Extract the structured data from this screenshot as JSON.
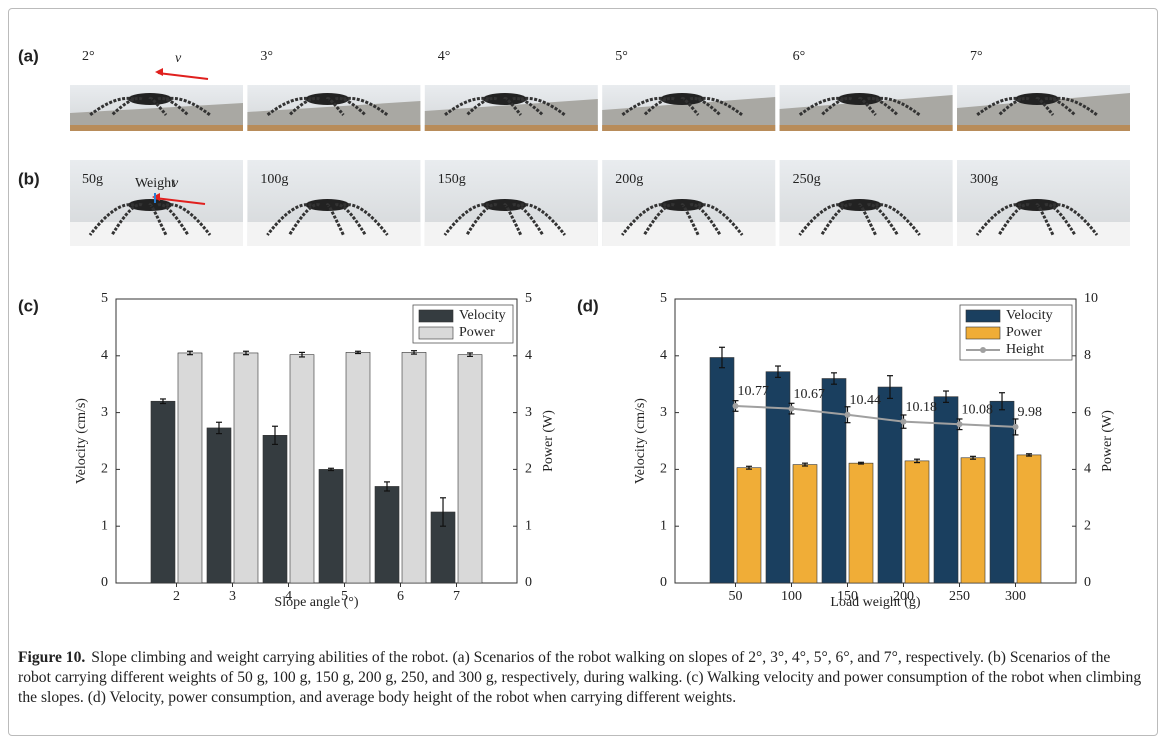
{
  "panels": {
    "a": {
      "label": "(a)",
      "frames": [
        "2°",
        "3°",
        "4°",
        "5°",
        "6°",
        "7°"
      ],
      "velocity_symbol": "v"
    },
    "b": {
      "label": "(b)",
      "frames": [
        "50g",
        "100g",
        "150g",
        "200g",
        "250g",
        "300g"
      ],
      "weight_label": "Weight",
      "velocity_symbol": "v"
    }
  },
  "chart_data": [
    {
      "type": "bar",
      "panel_label": "(c)",
      "xlabel": "Slope angle (°)",
      "ylabel": "Velocity (cm/s)",
      "y2label": "Power (W)",
      "categories": [
        "2",
        "3",
        "4",
        "5",
        "6",
        "7"
      ],
      "ylim": [
        0,
        5
      ],
      "yticks": [
        0,
        1,
        2,
        3,
        4,
        5
      ],
      "y2lim": [
        0,
        5
      ],
      "y2ticks": [
        0,
        1,
        2,
        3,
        4,
        5
      ],
      "legend": "upper right",
      "series": [
        {
          "name": "Velocity",
          "color": "#353c40",
          "values": [
            3.2,
            2.73,
            2.6,
            2.0,
            1.7,
            1.25
          ],
          "errors": [
            0.04,
            0.1,
            0.16,
            0.02,
            0.08,
            0.25
          ]
        },
        {
          "name": "Power",
          "color": "#d9d9d9",
          "axis": "y2",
          "values": [
            4.05,
            4.05,
            4.02,
            4.06,
            4.06,
            4.02
          ],
          "errors": [
            0.03,
            0.03,
            0.04,
            0.02,
            0.03,
            0.03
          ]
        }
      ]
    },
    {
      "type": "bar",
      "panel_label": "(d)",
      "xlabel": "Load weight (g)",
      "ylabel": "Velocity (cm/s)",
      "y2label": "Power (W)",
      "categories": [
        "50",
        "100",
        "150",
        "200",
        "250",
        "300"
      ],
      "ylim": [
        0,
        5
      ],
      "yticks": [
        0,
        1,
        2,
        3,
        4,
        5
      ],
      "y2lim": [
        0,
        10
      ],
      "y2ticks": [
        0,
        2,
        4,
        6,
        8,
        10
      ],
      "y3lim": [
        4.1,
        14.8
      ],
      "legend": "upper right",
      "series": [
        {
          "name": "Velocity",
          "color": "#1a3f5f",
          "values": [
            3.97,
            3.72,
            3.6,
            3.45,
            3.28,
            3.2
          ],
          "errors": [
            0.18,
            0.1,
            0.1,
            0.2,
            0.1,
            0.15
          ]
        },
        {
          "name": "Power",
          "color": "#f0ad37",
          "axis": "y2",
          "values": [
            4.06,
            4.17,
            4.22,
            4.3,
            4.41,
            4.51
          ],
          "errors": [
            0.05,
            0.05,
            0.03,
            0.06,
            0.05,
            0.04
          ]
        },
        {
          "name": "Height",
          "color": "#a0a0a0",
          "type": "line",
          "axis": "y3",
          "values": [
            10.77,
            10.67,
            10.44,
            10.18,
            10.08,
            9.98
          ],
          "errors": [
            0.2,
            0.2,
            0.3,
            0.25,
            0.2,
            0.3
          ]
        }
      ]
    }
  ],
  "caption": {
    "label": "Figure 10.",
    "text": "Slope climbing and weight carrying abilities of the robot. (a) Scenarios of the robot walking on slopes of 2°, 3°, 4°, 5°, 6°, and 7°, respectively. (b) Scenarios of the robot carrying different weights of 50 g, 100 g, 150 g, 200 g, 250, and 300 g, respectively, during walking. (c) Walking velocity and power consumption of the robot when climbing the slopes. (d) Velocity, power consumption, and average body height of the robot when carrying different weights."
  }
}
